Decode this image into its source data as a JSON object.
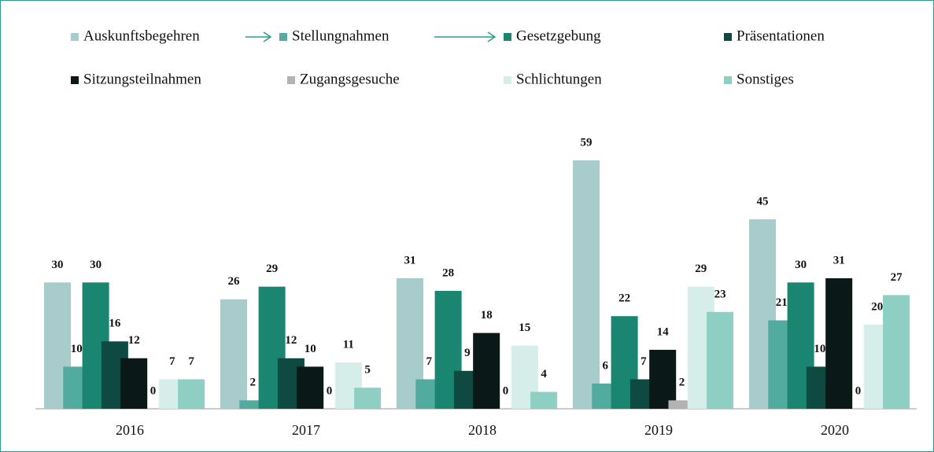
{
  "chart_data": {
    "type": "bar",
    "categories": [
      "2016",
      "2017",
      "2018",
      "2019",
      "2020"
    ],
    "series": [
      {
        "name": "Auskunftsbegehren",
        "color": "#a8cccb",
        "values": [
          30,
          26,
          31,
          59,
          45
        ]
      },
      {
        "name": "Stellungnahmen",
        "color": "#52ab9f",
        "values": [
          10,
          2,
          7,
          6,
          21
        ]
      },
      {
        "name": "Gesetzgebung",
        "color": "#1a8570",
        "values": [
          30,
          29,
          28,
          22,
          30
        ]
      },
      {
        "name": "Präsentationen",
        "color": "#0e4a42",
        "values": [
          16,
          12,
          9,
          7,
          10
        ]
      },
      {
        "name": "Sitzungsteilnahmen",
        "color": "#0a1818",
        "values": [
          12,
          10,
          18,
          14,
          31
        ]
      },
      {
        "name": "Zugangsgesuche",
        "color": "#b3b3b3",
        "values": [
          0,
          0,
          0,
          2,
          0
        ]
      },
      {
        "name": "Schlichtungen",
        "color": "#d5eee9",
        "values": [
          7,
          11,
          15,
          29,
          20
        ]
      },
      {
        "name": "Sonstiges",
        "color": "#8ecfc3",
        "values": [
          7,
          5,
          4,
          23,
          27
        ]
      }
    ]
  }
}
